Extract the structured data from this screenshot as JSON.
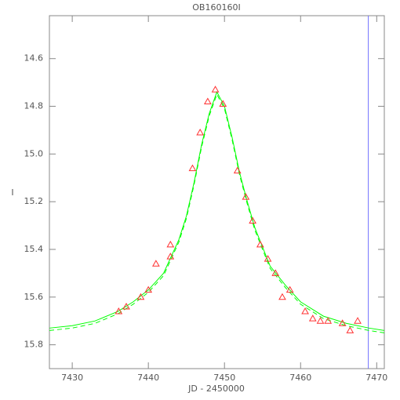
{
  "chart_data": {
    "type": "scatter",
    "title": "OB160160I",
    "x_label": "JD - 2450000",
    "y_label": "I",
    "xlim": [
      7427,
      7471
    ],
    "ylim": [
      15.9,
      14.42
    ],
    "xticks": [
      7430,
      7440,
      7450,
      7460,
      7470
    ],
    "yticks": [
      14.6,
      14.8,
      {
        "value": 15,
        "label": "15.0"
      },
      15.2,
      15.4,
      15.6,
      15.8
    ],
    "series": [
      {
        "type": "line",
        "color": "#00ff00",
        "dashed": false,
        "x": [
          7427,
          7430,
          7433,
          7436,
          7438,
          7440,
          7442,
          7444,
          7445,
          7446,
          7447,
          7448,
          7449,
          7450,
          7451,
          7452,
          7453,
          7454,
          7456,
          7458,
          7460,
          7463,
          7466,
          7469,
          7471
        ],
        "values": [
          15.73,
          15.72,
          15.7,
          15.66,
          15.62,
          15.57,
          15.5,
          15.36,
          15.26,
          15.12,
          14.96,
          14.83,
          14.74,
          14.8,
          14.93,
          15.08,
          15.2,
          15.31,
          15.47,
          15.55,
          15.62,
          15.68,
          15.71,
          15.73,
          15.74
        ]
      },
      {
        "type": "line",
        "color": "#00ff00",
        "dashed": true,
        "x": [
          7427,
          7430,
          7433,
          7436,
          7438,
          7440,
          7442,
          7444,
          7445,
          7446,
          7447,
          7448,
          7449,
          7450,
          7451,
          7452,
          7453,
          7454,
          7456,
          7458,
          7460,
          7463,
          7466,
          7469,
          7471
        ],
        "values": [
          15.74,
          15.73,
          15.71,
          15.67,
          15.63,
          15.58,
          15.51,
          15.37,
          15.27,
          15.13,
          14.97,
          14.84,
          14.75,
          14.81,
          14.94,
          15.09,
          15.21,
          15.32,
          15.48,
          15.56,
          15.63,
          15.69,
          15.72,
          15.74,
          15.75
        ]
      },
      {
        "type": "scatter",
        "color": "#ff3030",
        "x": [
          7436.1,
          7437.1,
          7439,
          7440,
          7441,
          7442.9,
          7442.9,
          7445.8,
          7446.8,
          7447.8,
          7448.8,
          7449.8,
          7451.7,
          7452.8,
          7453.7,
          7454.7,
          7455.7,
          7456.7,
          7457.6,
          7458.6,
          7460.6,
          7461.6,
          7462.6,
          7463.6,
          7465.5,
          7466.5,
          7467.5
        ],
        "values": [
          15.66,
          15.64,
          15.6,
          15.57,
          15.46,
          15.38,
          15.43,
          15.06,
          14.91,
          14.78,
          14.73,
          14.79,
          15.07,
          15.18,
          15.28,
          15.38,
          15.44,
          15.5,
          15.6,
          15.57,
          15.66,
          15.69,
          15.7,
          15.7,
          15.71,
          15.74,
          15.7
        ]
      }
    ],
    "vlines": [
      {
        "x": 7468.9,
        "color": "#7070ff"
      }
    ]
  }
}
